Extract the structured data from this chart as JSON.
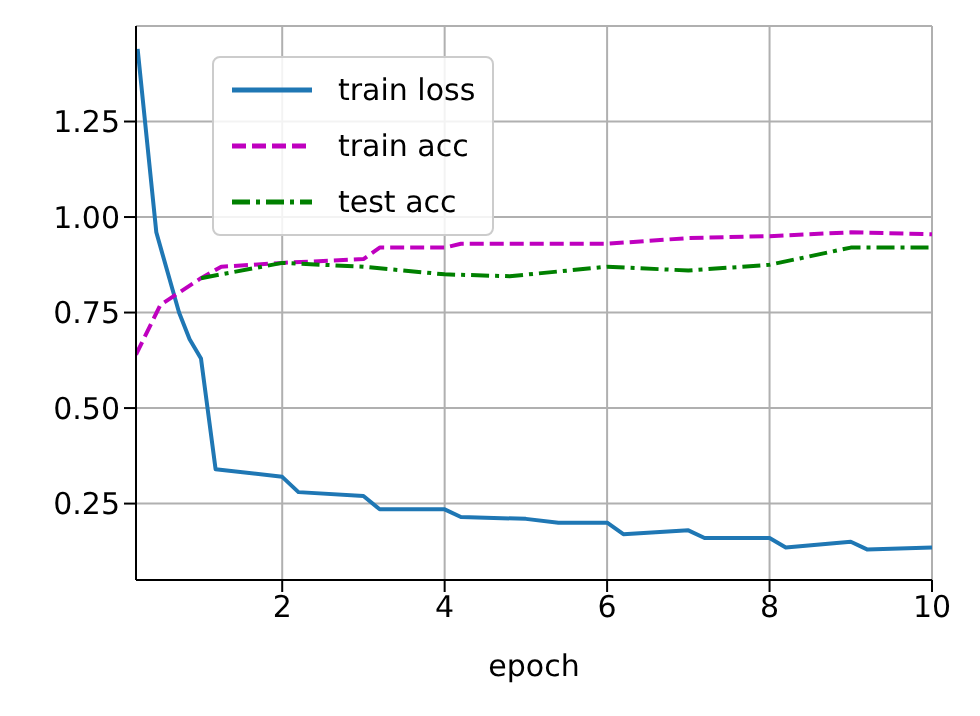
{
  "chart_data": {
    "type": "line",
    "xlabel": "epoch",
    "xlim": [
      0.2,
      10
    ],
    "xticks": [
      2,
      4,
      6,
      8,
      10
    ],
    "ylim": [
      0.05,
      1.5
    ],
    "yticks": [
      0.25,
      {
        "value": 0.5,
        "label": "0.50"
      },
      0.75,
      {
        "value": 1,
        "label": "1.00"
      },
      1.25
    ],
    "grid": true,
    "legend": "top left",
    "marker": "none",
    "series": [
      {
        "name": "train loss",
        "color": "#1f77b4",
        "line_style": "solid",
        "x": [
          0.22,
          0.45,
          0.73,
          0.86,
          1.0,
          1.18,
          2.0,
          2.2,
          3.0,
          3.2,
          4.0,
          4.2,
          5.0,
          5.4,
          6.0,
          6.2,
          7.0,
          7.2,
          8.0,
          8.2,
          9.0,
          9.2,
          10
        ],
        "values": [
          1.44,
          0.96,
          0.75,
          0.68,
          0.63,
          0.34,
          0.32,
          0.28,
          0.27,
          0.235,
          0.235,
          0.215,
          0.21,
          0.2,
          0.2,
          0.17,
          0.18,
          0.16,
          0.16,
          0.135,
          0.15,
          0.13,
          0.135
        ]
      },
      {
        "name": "train acc",
        "color": "#bf00bf",
        "line_style": "dashed",
        "x": [
          0.2,
          0.5,
          1.0,
          1.25,
          2.0,
          3.0,
          3.2,
          4.0,
          4.2,
          5.0,
          6.0,
          7.0,
          8.0,
          9.0,
          10
        ],
        "values": [
          0.64,
          0.77,
          0.84,
          0.87,
          0.88,
          0.89,
          0.92,
          0.92,
          0.93,
          0.93,
          0.93,
          0.945,
          0.95,
          0.96,
          0.955
        ]
      },
      {
        "name": "test acc",
        "color": "#008000",
        "line_style": "dashdot",
        "x": [
          1.0,
          2.0,
          3.0,
          4.0,
          4.8,
          6.0,
          7.0,
          8.0,
          9.0,
          10
        ],
        "values": [
          0.84,
          0.88,
          0.87,
          0.85,
          0.845,
          0.87,
          0.86,
          0.875,
          0.92,
          0.92
        ]
      }
    ]
  }
}
